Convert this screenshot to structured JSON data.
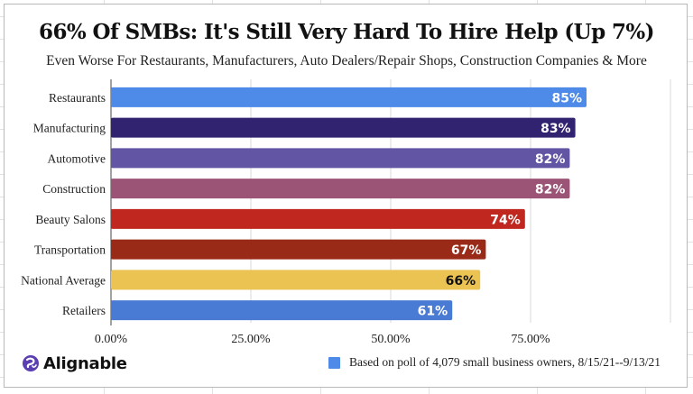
{
  "chart_data": {
    "type": "bar",
    "orientation": "horizontal",
    "title": "66% Of  SMBs: It's Still Very Hard To Hire Help (Up 7%)",
    "subtitle": "Even Worse For Restaurants, Manufacturers, Auto Dealers/Repair Shops, Construction Companies & More",
    "xlabel": "",
    "ylabel": "",
    "categories": [
      "Restaurants",
      "Manufacturing",
      "Automotive",
      "Construction",
      "Beauty Salons",
      "Transportation",
      "National Average",
      "Retailers"
    ],
    "values": [
      85,
      83,
      82,
      82,
      74,
      67,
      66,
      61
    ],
    "data_labels": [
      "85%",
      "83%",
      "82%",
      "82%",
      "74%",
      "67%",
      "66%",
      "61%"
    ],
    "bar_colors": [
      "#4E8AE8",
      "#31236F",
      "#6155A4",
      "#9B5476",
      "#C0281F",
      "#9A2A18",
      "#EBC352",
      "#4A7BD4"
    ],
    "label_colors": [
      "#ffffff",
      "#ffffff",
      "#ffffff",
      "#ffffff",
      "#ffffff",
      "#ffffff",
      "#111111",
      "#ffffff"
    ],
    "xlim": [
      0,
      100
    ],
    "x_ticks": [
      0,
      25,
      50,
      75,
      100
    ],
    "x_tick_labels": [
      "0.00%",
      "25.00%",
      "50.00%",
      "75.00%",
      ""
    ],
    "grid": true,
    "legend": {
      "position": "bottom-right",
      "entries": [
        {
          "label": "Based on poll of 4,079 small business owners, 8/15/21--9/13/21",
          "color": "#4E8AE8"
        }
      ]
    }
  },
  "branding": {
    "logo_text": "Alignable",
    "logo_icon": "alignable-logo-icon",
    "logo_color": "#5B3FB0"
  }
}
